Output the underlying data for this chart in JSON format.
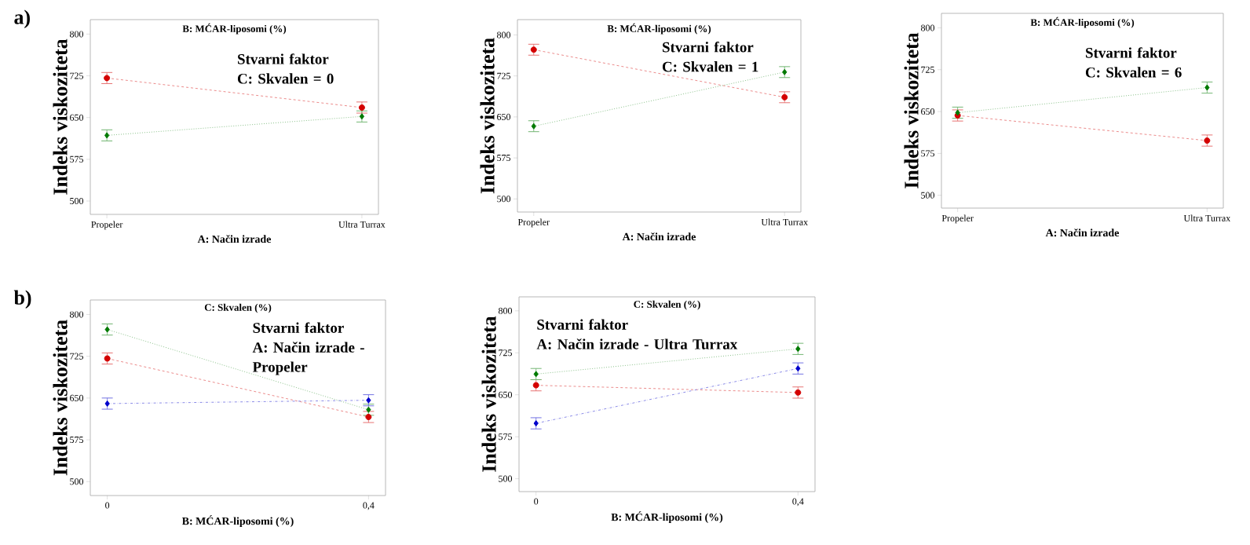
{
  "chart_data": [
    {
      "type": "line",
      "title": "a)",
      "legend_title": "B: MĆAR-liposomi (%)",
      "annotations": [
        "Stvarni faktor",
        "C: Skvalen = 0"
      ],
      "xlabel": "A: Način izrade",
      "ylabel": "Indeks viskoziteta",
      "categories": [
        "Propeler",
        "Ultra Turrax"
      ],
      "ylim": [
        476,
        826
      ],
      "yticks": [
        500,
        575,
        650,
        725,
        800
      ],
      "series": [
        {
          "color": "#d40000",
          "line_style": "dashed",
          "marker": "circle",
          "values": [
            721,
            668
          ],
          "errors": [
            10,
            10
          ]
        },
        {
          "color": "#007a00",
          "line_style": "dotted",
          "marker": "diamond",
          "values": [
            618,
            652
          ],
          "errors": [
            10,
            10
          ]
        }
      ]
    },
    {
      "type": "line",
      "legend_title": "B: MĆAR-liposomi (%)",
      "annotations": [
        "Stvarni faktor",
        "C: Skvalen = 1"
      ],
      "xlabel": "A: Način izrade",
      "ylabel": "Indeks viskoziteta",
      "categories": [
        "Propeler",
        "Ultra Turrax"
      ],
      "ylim": [
        476,
        828
      ],
      "yticks": [
        500,
        575,
        650,
        725,
        800
      ],
      "series": [
        {
          "color": "#d40000",
          "line_style": "dashed",
          "marker": "circle",
          "values": [
            773,
            686
          ],
          "errors": [
            10,
            10
          ]
        },
        {
          "color": "#007a00",
          "line_style": "dotted",
          "marker": "diamond",
          "values": [
            633,
            732
          ],
          "errors": [
            10,
            10
          ]
        }
      ]
    },
    {
      "type": "line",
      "legend_title": "B: MĆAR-liposomi (%)",
      "annotations": [
        "Stvarni faktor",
        "C: Skvalen = 6"
      ],
      "xlabel": "A: Način izrade",
      "ylabel": "Indeks viskoziteta",
      "categories": [
        "Propeler",
        "Ultra Turrax"
      ],
      "ylim": [
        477,
        826
      ],
      "yticks": [
        500,
        575,
        650,
        725,
        800
      ],
      "series": [
        {
          "color": "#d40000",
          "line_style": "dashed",
          "marker": "circle",
          "values": [
            643,
            598
          ],
          "errors": [
            10,
            10
          ]
        },
        {
          "color": "#007a00",
          "line_style": "dotted",
          "marker": "diamond",
          "values": [
            648,
            693
          ],
          "errors": [
            10,
            10
          ]
        }
      ]
    },
    {
      "type": "line",
      "title": "b)",
      "legend_title": "C: Skvalen (%)",
      "annotations": [
        "Stvarni faktor",
        "A: Način izrade - Propeler"
      ],
      "xlabel": "B: MĆAR-liposomi (%)",
      "ylabel": "Indeks viskoziteta",
      "categories": [
        "0",
        "0,4"
      ],
      "ylim": [
        475,
        826
      ],
      "yticks": [
        500,
        575,
        650,
        725,
        800
      ],
      "series": [
        {
          "color": "#d40000",
          "line_style": "dashed",
          "marker": "circle",
          "values": [
            721,
            616
          ],
          "errors": [
            10,
            10
          ]
        },
        {
          "color": "#007a00",
          "line_style": "dotted",
          "marker": "diamond",
          "values": [
            773,
            629
          ],
          "errors": [
            10,
            10
          ]
        },
        {
          "color": "#0000cc",
          "line_style": "dashdot",
          "marker": "diamond",
          "values": [
            640,
            646
          ],
          "errors": [
            10,
            10
          ]
        }
      ]
    },
    {
      "type": "line",
      "legend_title": "C: Skvalen (%)",
      "annotations": [
        "Stvarni faktor",
        "A: Način izrade - Ultra Turrax"
      ],
      "xlabel": "B: MĆAR-liposomi (%)",
      "ylabel": "Indeks viskoziteta",
      "categories": [
        "0",
        "0,4"
      ],
      "ylim": [
        477,
        825
      ],
      "yticks": [
        500,
        575,
        650,
        725,
        800
      ],
      "series": [
        {
          "color": "#d40000",
          "line_style": "dashed",
          "marker": "circle",
          "values": [
            667,
            654
          ],
          "errors": [
            10,
            10
          ]
        },
        {
          "color": "#007a00",
          "line_style": "dotted",
          "marker": "diamond",
          "values": [
            687,
            732
          ],
          "errors": [
            10,
            10
          ]
        },
        {
          "color": "#0000cc",
          "line_style": "dashdot",
          "marker": "diamond",
          "values": [
            599,
            697
          ],
          "errors": [
            10,
            10
          ]
        }
      ]
    }
  ]
}
